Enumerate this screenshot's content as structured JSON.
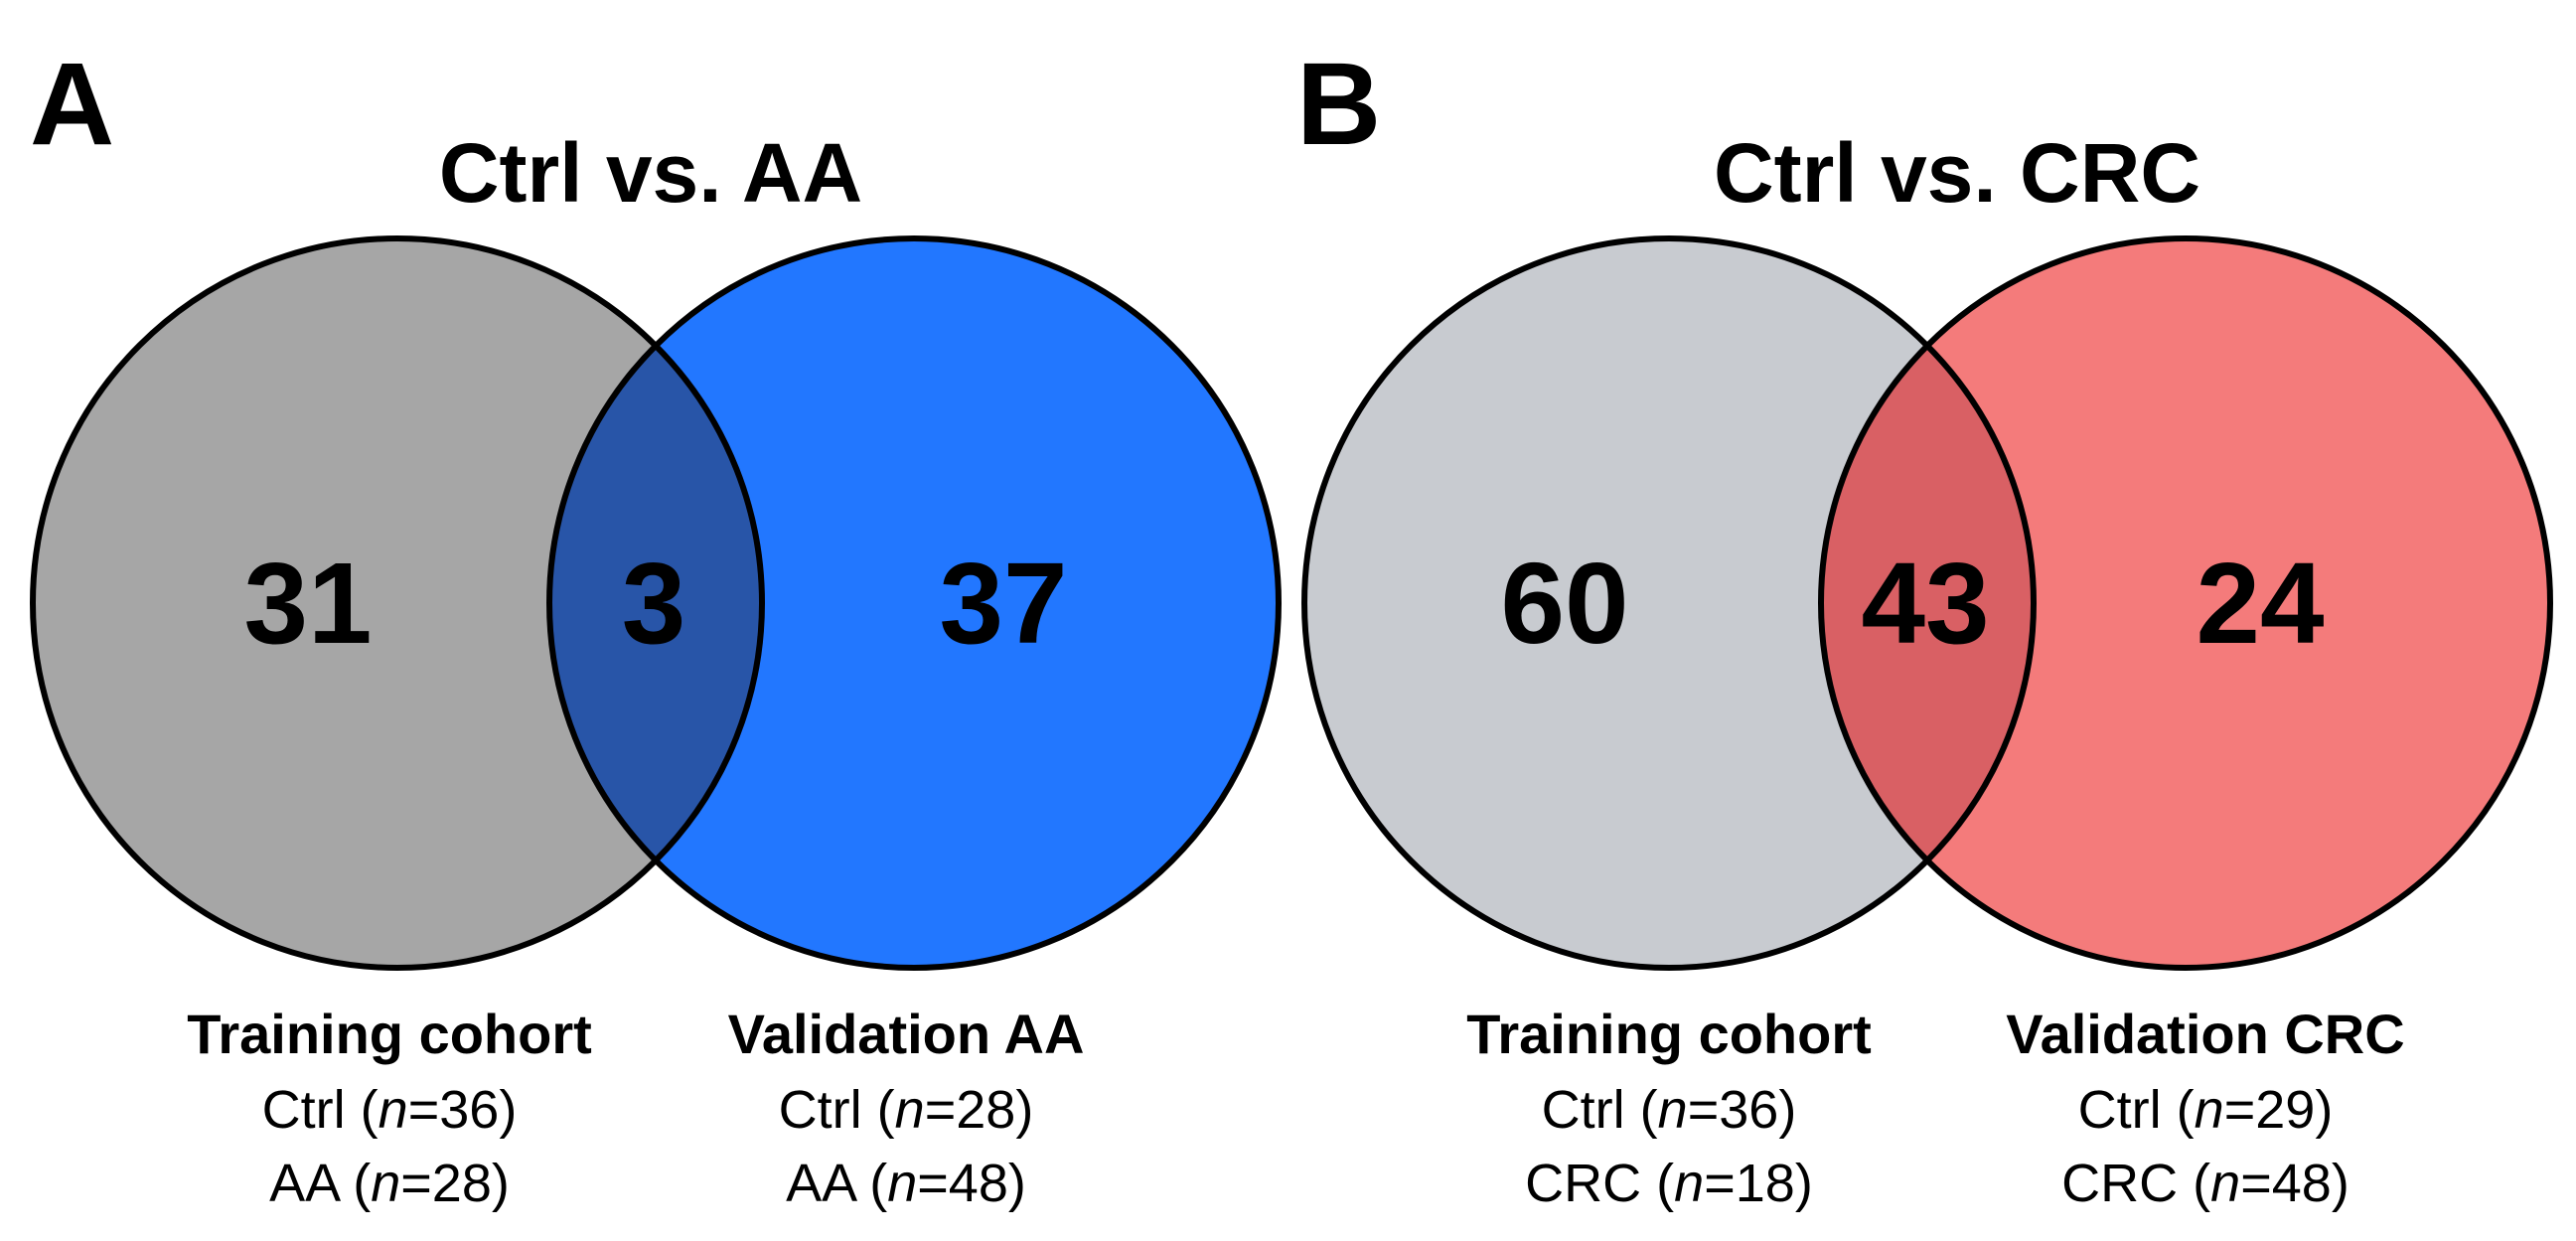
{
  "colors": {
    "a_left_fill": "#a6a6a6",
    "a_right_fill": "#2277ff",
    "a_overlap_fill": "#2855a8",
    "b_left_fill": "#c8cbd0",
    "b_right_fill": "#f47b7b",
    "b_overlap_fill": "#d96064",
    "outline": "#000000"
  },
  "panels": [
    {
      "letter": "A",
      "title": "Ctrl vs. AA",
      "counts": {
        "left_only": "31",
        "overlap": "3",
        "right_only": "37"
      },
      "left_set": {
        "title": "Training cohort",
        "lines": [
          {
            "group": "Ctrl",
            "n": "36"
          },
          {
            "group": "AA",
            "n": "28"
          }
        ]
      },
      "right_set": {
        "title": "Validation AA",
        "lines": [
          {
            "group": "Ctrl",
            "n": "28"
          },
          {
            "group": "AA",
            "n": "48"
          }
        ]
      }
    },
    {
      "letter": "B",
      "title": "Ctrl vs. CRC",
      "counts": {
        "left_only": "60",
        "overlap": "43",
        "right_only": "24"
      },
      "left_set": {
        "title": "Training cohort",
        "lines": [
          {
            "group": "Ctrl",
            "n": "36"
          },
          {
            "group": "CRC",
            "n": "18"
          }
        ]
      },
      "right_set": {
        "title": "Validation CRC",
        "lines": [
          {
            "group": "Ctrl",
            "n": "29"
          },
          {
            "group": "CRC",
            "n": "48"
          }
        ]
      }
    }
  ]
}
